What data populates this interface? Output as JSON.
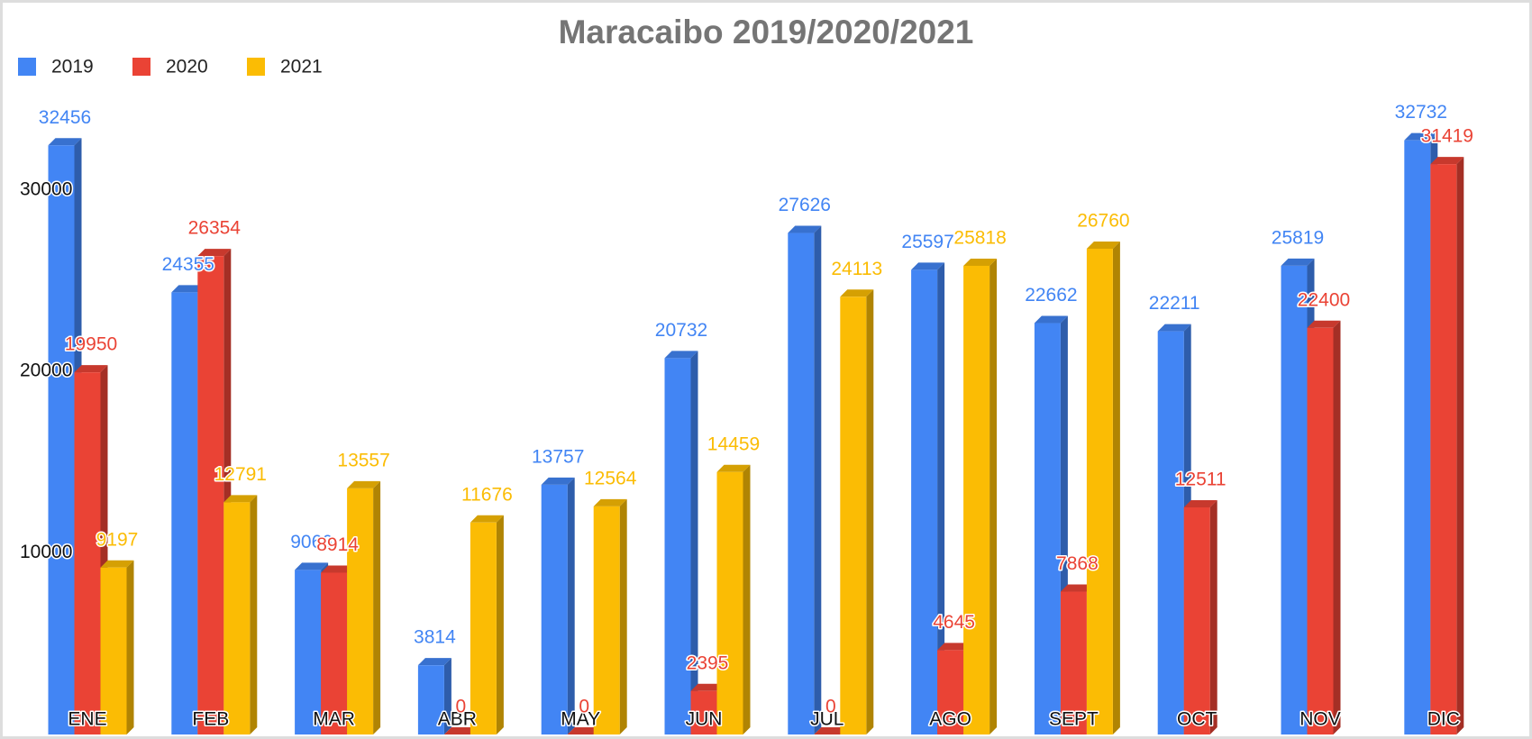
{
  "chart_data": {
    "type": "bar3d",
    "title": "Maracaibo 2019/2020/2021",
    "categories": [
      "ENE",
      "FEB",
      "MAR",
      "ABR",
      "MAY",
      "JUN",
      "JUL",
      "AGO",
      "SEPT",
      "OCT",
      "NOV",
      "DIC"
    ],
    "series": [
      {
        "name": "2019",
        "color": "#4285f4",
        "values": [
          32456,
          24355,
          9066,
          3814,
          13757,
          20732,
          27626,
          25597,
          22662,
          22211,
          25819,
          32732
        ]
      },
      {
        "name": "2020",
        "color": "#ea4335",
        "values": [
          19950,
          26354,
          8914,
          0,
          0,
          2395,
          0,
          4645,
          7868,
          12511,
          22400,
          31419
        ]
      },
      {
        "name": "2021",
        "color": "#fbbc04",
        "values": [
          9197,
          12791,
          13557,
          11676,
          12564,
          14459,
          24113,
          25818,
          26760,
          null,
          null,
          null
        ]
      }
    ],
    "ylim": [
      0,
      35000
    ],
    "yticks": [
      10000,
      20000,
      30000
    ],
    "grid": false,
    "legend": "top-left"
  }
}
